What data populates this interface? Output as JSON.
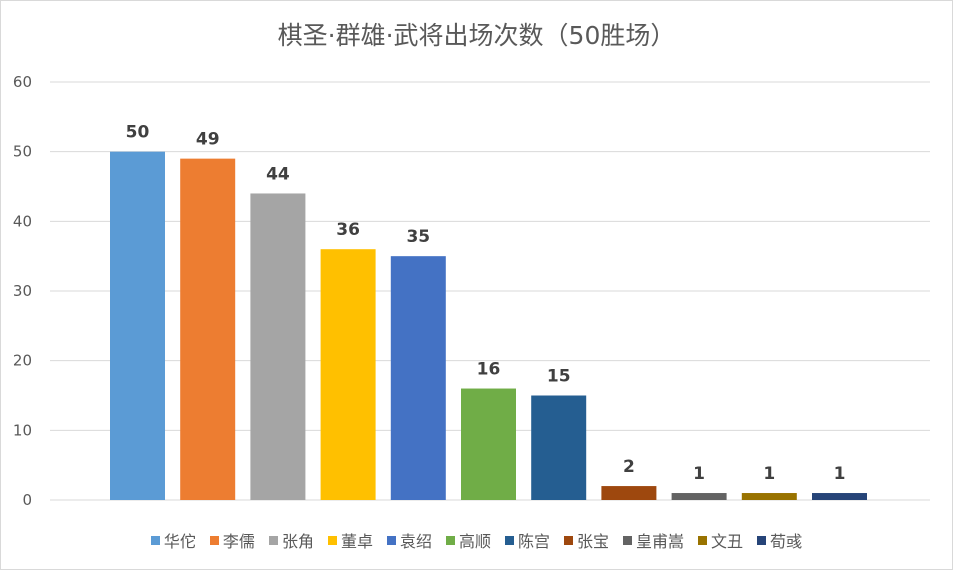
{
  "chart_data": {
    "type": "bar",
    "title": "棋圣·群雄·武将出场次数（50胜场）",
    "categories": [
      "华佗",
      "李儒",
      "张角",
      "董卓",
      "袁绍",
      "高顺",
      "陈宫",
      "张宝",
      "皇甫嵩",
      "文丑",
      "荀彧"
    ],
    "values": [
      50,
      49,
      44,
      36,
      35,
      16,
      15,
      2,
      1,
      1,
      1
    ],
    "colors": [
      "#5b9bd5",
      "#ed7d31",
      "#a5a5a5",
      "#ffc000",
      "#4472c4",
      "#70ad47",
      "#255e91",
      "#9e480e",
      "#636363",
      "#997300",
      "#264478"
    ],
    "ylim": [
      0,
      60
    ],
    "yticks": [
      0,
      10,
      20,
      30,
      40,
      50,
      60
    ],
    "grid": true,
    "legend": "bottom",
    "data_labels": true
  }
}
